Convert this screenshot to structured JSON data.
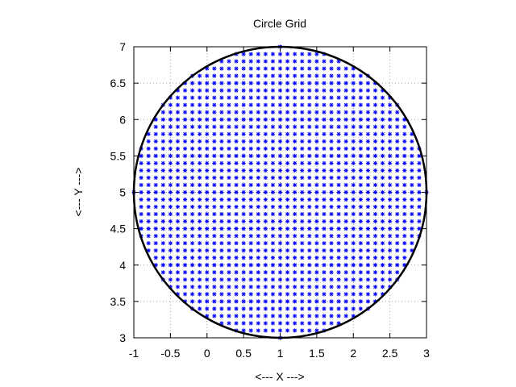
{
  "chart_data": {
    "type": "scatter",
    "title": "Circle Grid",
    "xlabel": "<--- X --->",
    "ylabel": "<--- Y --->",
    "xlim": [
      -1,
      3
    ],
    "ylim": [
      3,
      7
    ],
    "xticks": [
      "-1",
      "-0.5",
      "0",
      "0.5",
      "1",
      "1.5",
      "2",
      "2.5",
      "3"
    ],
    "yticks": [
      "3",
      "3.5",
      "4",
      "4.5",
      "5",
      "5.5",
      "6",
      "6.5",
      "7"
    ],
    "grid": true,
    "grid_style": "dotted",
    "legend": "none",
    "circle": {
      "center": [
        1,
        5
      ],
      "radius": 2,
      "color": "#000000"
    },
    "points": {
      "marker": "asterisk",
      "color": "#0000ff",
      "x_start": -1,
      "y_start": 3,
      "step": 0.1,
      "fill": "uniform grid of points inside circle of radius 2 centered at (1, 5)"
    }
  }
}
